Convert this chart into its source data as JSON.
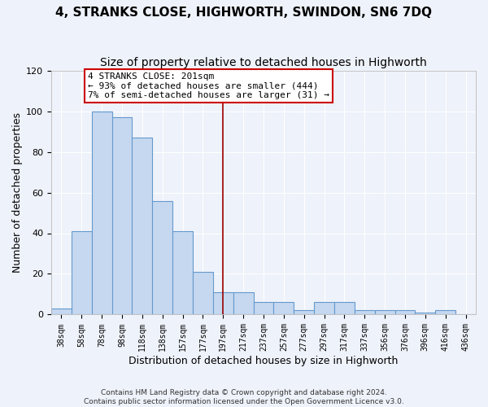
{
  "title": "4, STRANKS CLOSE, HIGHWORTH, SWINDON, SN6 7DQ",
  "subtitle": "Size of property relative to detached houses in Highworth",
  "xlabel": "Distribution of detached houses by size in Highworth",
  "ylabel": "Number of detached properties",
  "bin_labels": [
    "38sqm",
    "58sqm",
    "78sqm",
    "98sqm",
    "118sqm",
    "138sqm",
    "157sqm",
    "177sqm",
    "197sqm",
    "217sqm",
    "237sqm",
    "257sqm",
    "277sqm",
    "297sqm",
    "317sqm",
    "337sqm",
    "356sqm",
    "376sqm",
    "396sqm",
    "416sqm",
    "436sqm"
  ],
  "bar_heights": [
    3,
    41,
    100,
    97,
    87,
    56,
    41,
    21,
    11,
    11,
    6,
    6,
    2,
    6,
    6,
    2,
    2,
    2,
    1,
    2,
    0
  ],
  "bar_color": "#c5d8f0",
  "bar_edge_color": "#6699cc",
  "vline_color": "#990000",
  "annotation_line1": "4 STRANKS CLOSE: 201sqm",
  "annotation_line2": "← 93% of detached houses are smaller (444)",
  "annotation_line3": "7% of semi-detached houses are larger (31) →",
  "annotation_box_color": "#cc0000",
  "ylim": [
    0,
    120
  ],
  "yticks": [
    0,
    20,
    40,
    60,
    80,
    100,
    120
  ],
  "background_color": "#eef2fa",
  "grid_color": "#ffffff",
  "footer_line1": "Contains HM Land Registry data © Crown copyright and database right 2024.",
  "footer_line2": "Contains public sector information licensed under the Open Government Licence v3.0."
}
